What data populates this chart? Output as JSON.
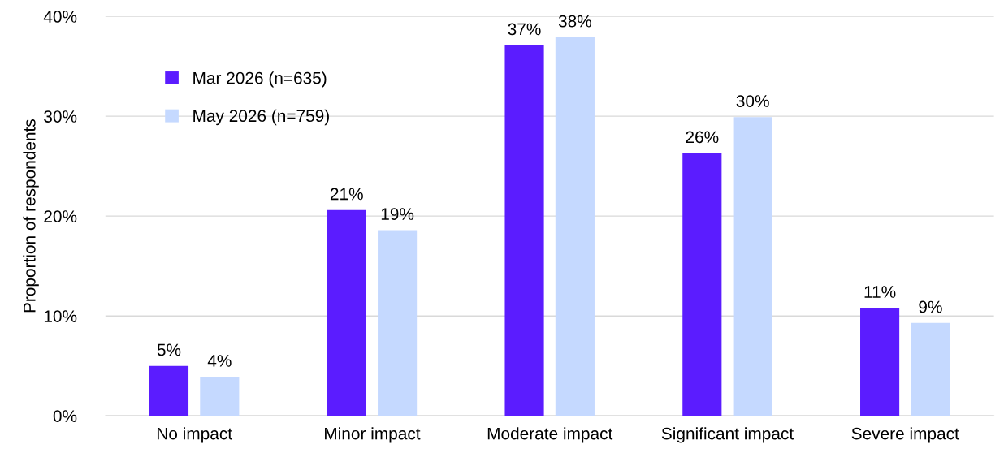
{
  "chart_data": {
    "type": "bar",
    "ylabel": "Proportion of respondents",
    "categories": [
      "No impact",
      "Minor impact",
      "Moderate impact",
      "Significant impact",
      "Severe impact"
    ],
    "series": [
      {
        "name": "Mar 2026 (n=635)",
        "color": "#5b1cff",
        "values": [
          5.0,
          20.6,
          37.1,
          26.3,
          10.8
        ],
        "value_labels": [
          "5%",
          "21%",
          "37%",
          "26%",
          "11%"
        ]
      },
      {
        "name": "May 2026 (n=759)",
        "color": "#c5d9ff",
        "values": [
          3.9,
          18.6,
          37.9,
          29.9,
          9.3
        ],
        "value_labels": [
          "4%",
          "19%",
          "38%",
          "30%",
          "9%"
        ]
      }
    ],
    "ylim": [
      0,
      40
    ],
    "yticks": [
      {
        "value": 0,
        "label": "0%"
      },
      {
        "value": 10,
        "label": "10%"
      },
      {
        "value": 20,
        "label": "20%"
      },
      {
        "value": 30,
        "label": "30%"
      },
      {
        "value": 40,
        "label": "40%"
      }
    ],
    "grid": "y",
    "legend": "top left"
  }
}
